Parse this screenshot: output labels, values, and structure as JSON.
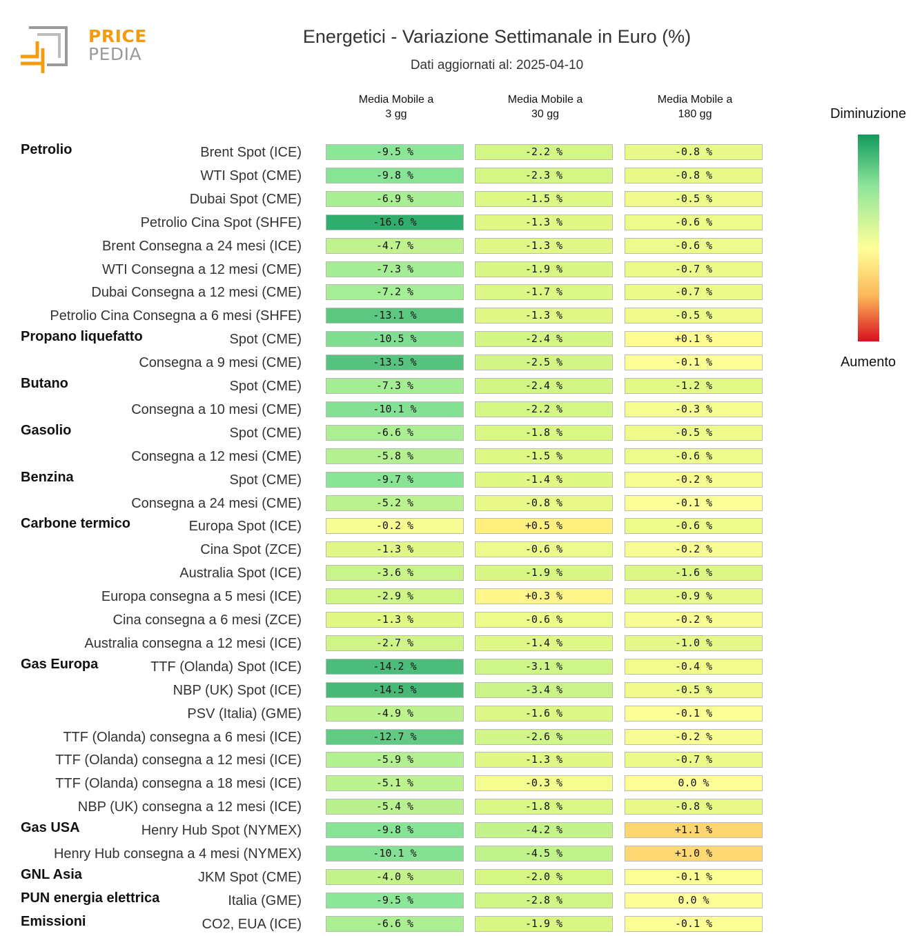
{
  "logo": {
    "line1": "PRICE",
    "line2": "PEDIA"
  },
  "title": "Energetici - Variazione Settimanale in Euro (%)",
  "subtitle": "Dati aggiornati al: 2025-04-10",
  "legend": {
    "top": "Diminuzione",
    "bottom": "Aumento",
    "colors": [
      "#119a5e",
      "#8fe59a",
      "#ffff99",
      "#fdb75a",
      "#d7101e"
    ]
  },
  "chart_data": {
    "type": "table",
    "columns": [
      "Media Mobile a\n3 gg",
      "Media Mobile a\n30 gg",
      "Media Mobile a\n180 gg"
    ],
    "groups": [
      {
        "name": "Petrolio",
        "rows": [
          {
            "label": "Brent Spot (ICE)",
            "values": [
              -9.5,
              -2.2,
              -0.8
            ]
          },
          {
            "label": "WTI Spot (CME)",
            "values": [
              -9.8,
              -2.3,
              -0.8
            ]
          },
          {
            "label": "Dubai Spot (CME)",
            "values": [
              -6.9,
              -1.5,
              -0.5
            ]
          },
          {
            "label": "Petrolio Cina Spot (SHFE)",
            "values": [
              -16.6,
              -1.3,
              -0.6
            ]
          },
          {
            "label": "Brent Consegna a 24 mesi (ICE)",
            "values": [
              -4.7,
              -1.3,
              -0.6
            ]
          },
          {
            "label": "WTI Consegna a 12 mesi (CME)",
            "values": [
              -7.3,
              -1.9,
              -0.7
            ]
          },
          {
            "label": "Dubai Consegna a 12 mesi (CME)",
            "values": [
              -7.2,
              -1.7,
              -0.7
            ]
          },
          {
            "label": "Petrolio Cina Consegna a 6 mesi (SHFE)",
            "values": [
              -13.1,
              -1.3,
              -0.5
            ]
          }
        ]
      },
      {
        "name": "Propano liquefatto",
        "rows": [
          {
            "label": "Spot (CME)",
            "values": [
              -10.5,
              -2.4,
              0.1
            ]
          },
          {
            "label": "Consegna a 9 mesi (CME)",
            "values": [
              -13.5,
              -2.5,
              -0.1
            ]
          }
        ]
      },
      {
        "name": "Butano",
        "rows": [
          {
            "label": "Spot (CME)",
            "values": [
              -7.3,
              -2.4,
              -1.2
            ]
          },
          {
            "label": "Consegna a 10 mesi (CME)",
            "values": [
              -10.1,
              -2.2,
              -0.3
            ]
          }
        ]
      },
      {
        "name": "Gasolio",
        "rows": [
          {
            "label": "Spot (CME)",
            "values": [
              -6.6,
              -1.8,
              -0.5
            ]
          },
          {
            "label": "Consegna a 12 mesi (CME)",
            "values": [
              -5.8,
              -1.5,
              -0.6
            ]
          }
        ]
      },
      {
        "name": "Benzina",
        "rows": [
          {
            "label": "Spot (CME)",
            "values": [
              -9.7,
              -1.4,
              -0.2
            ]
          },
          {
            "label": "Consegna a 24 mesi (CME)",
            "values": [
              -5.2,
              -0.8,
              -0.1
            ]
          }
        ]
      },
      {
        "name": "Carbone termico",
        "rows": [
          {
            "label": "Europa Spot (ICE)",
            "values": [
              -0.2,
              0.5,
              -0.6
            ]
          },
          {
            "label": "Cina Spot (ZCE)",
            "values": [
              -1.3,
              -0.6,
              -0.2
            ]
          },
          {
            "label": "Australia Spot (ICE)",
            "values": [
              -3.6,
              -1.9,
              -1.6
            ]
          },
          {
            "label": "Europa consegna a 5 mesi (ICE)",
            "values": [
              -2.9,
              0.3,
              -0.9
            ]
          },
          {
            "label": "Cina consegna a 6 mesi (ZCE)",
            "values": [
              -1.3,
              -0.6,
              -0.2
            ]
          },
          {
            "label": "Australia consegna a 12 mesi (ICE)",
            "values": [
              -2.7,
              -1.4,
              -1.0
            ]
          }
        ]
      },
      {
        "name": "Gas Europa",
        "rows": [
          {
            "label": "TTF (Olanda) Spot (ICE)",
            "values": [
              -14.2,
              -3.1,
              -0.4
            ]
          },
          {
            "label": "NBP (UK) Spot (ICE)",
            "values": [
              -14.5,
              -3.4,
              -0.5
            ]
          },
          {
            "label": "PSV (Italia) (GME)",
            "values": [
              -4.9,
              -1.6,
              -0.1
            ]
          },
          {
            "label": "TTF (Olanda) consegna a 6 mesi (ICE)",
            "values": [
              -12.7,
              -2.6,
              -0.2
            ]
          },
          {
            "label": "TTF (Olanda) consegna a 12 mesi (ICE)",
            "values": [
              -5.9,
              -1.3,
              -0.7
            ]
          },
          {
            "label": "TTF (Olanda) consegna a 18 mesi (ICE)",
            "values": [
              -5.1,
              -0.3,
              0.0
            ]
          },
          {
            "label": "NBP (UK) consegna a 12 mesi (ICE)",
            "values": [
              -5.4,
              -1.8,
              -0.8
            ]
          }
        ]
      },
      {
        "name": "Gas USA",
        "rows": [
          {
            "label": "Henry Hub Spot (NYMEX)",
            "values": [
              -9.8,
              -4.2,
              1.1
            ]
          },
          {
            "label": "Henry Hub consegna a 4 mesi (NYMEX)",
            "values": [
              -10.1,
              -4.5,
              1.0
            ]
          }
        ]
      },
      {
        "name": "GNL Asia",
        "rows": [
          {
            "label": "JKM Spot (CME)",
            "values": [
              -4.0,
              -2.0,
              -0.1
            ]
          }
        ]
      },
      {
        "name": "PUN energia elettrica",
        "rows": [
          {
            "label": "Italia (GME)",
            "values": [
              -9.5,
              -2.8,
              0.0
            ]
          }
        ]
      },
      {
        "name": "Emissioni",
        "rows": [
          {
            "label": "CO2, EUA (ICE)",
            "values": [
              -6.6,
              -1.9,
              -0.1
            ]
          }
        ]
      }
    ]
  }
}
